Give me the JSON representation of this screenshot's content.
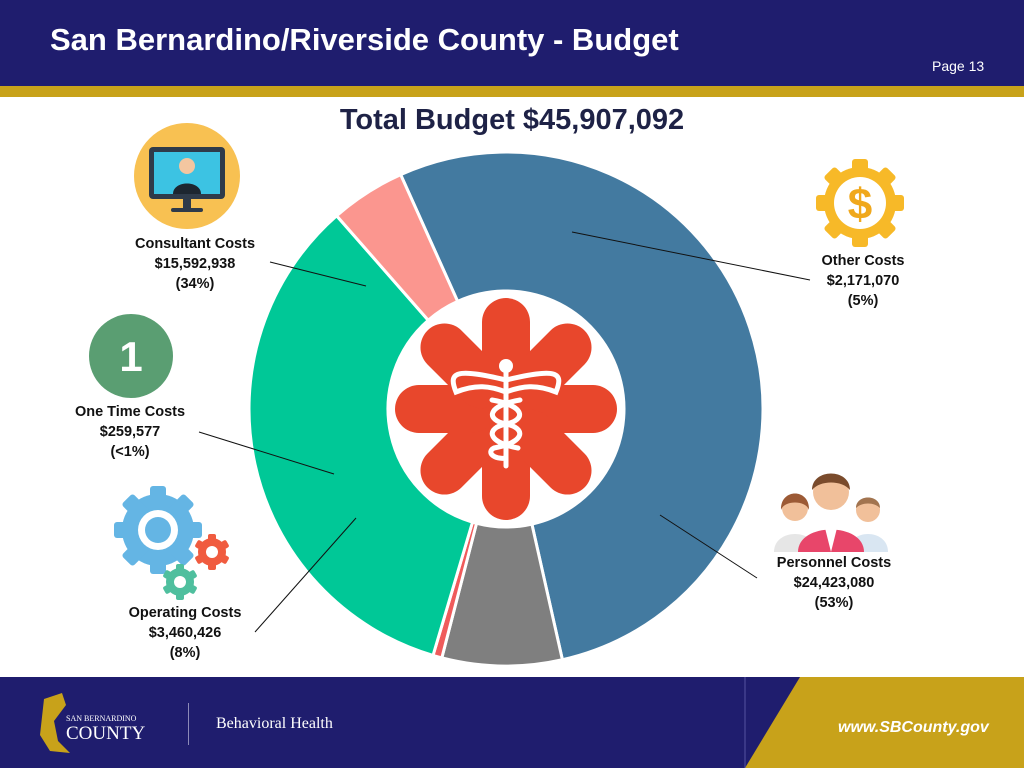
{
  "header": {
    "title": "San Bernardino/Riverside County  - Budget",
    "page_label": "Page 13"
  },
  "footer": {
    "logo_top": "SAN BERNARDINO",
    "logo_bottom": "COUNTY",
    "department": "Behavioral Health",
    "url": "www.SBCounty.gov"
  },
  "icons": {
    "consultant": "video-call-icon",
    "one_time": "number-one-badge-icon",
    "operating": "gears-icon",
    "other": "dollar-gear-icon",
    "personnel": "people-group-icon",
    "center": "caduceus-medical-icon",
    "center_badge_digit": "1"
  },
  "colors": {
    "header": "#1f1d6e",
    "accent_gold": "#c8a21a",
    "personnel": "#437aa0",
    "operating": "#7f7f7f",
    "one_time": "#ef5b5b",
    "consultant": "#00c897",
    "other": "#fb968f",
    "center_star": "#e8472c"
  },
  "chart_data": {
    "type": "pie",
    "variant": "donut",
    "title": "Total Budget $45,907,092",
    "total": 45907092,
    "legend": "none",
    "slices": [
      {
        "name": "Personnel Costs",
        "amount": "$24,423,080",
        "pct_label": "(53%)",
        "value": 24423080,
        "color": "#437aa0"
      },
      {
        "name": "Operating Costs",
        "amount": "$3,460,426",
        "pct_label": "(8%)",
        "value": 3460426,
        "color": "#7f7f7f"
      },
      {
        "name": "One Time Costs",
        "amount": "$259,577",
        "pct_label": "(<1%)",
        "value": 259577,
        "color": "#ef5b5b"
      },
      {
        "name": "Consultant Costs",
        "amount": "$15,592,938",
        "pct_label": "(34%)",
        "value": 15592938,
        "color": "#00c897"
      },
      {
        "name": "Other Costs",
        "amount": "$2,171,070",
        "pct_label": "(5%)",
        "value": 2171070,
        "color": "#fb968f"
      }
    ]
  }
}
